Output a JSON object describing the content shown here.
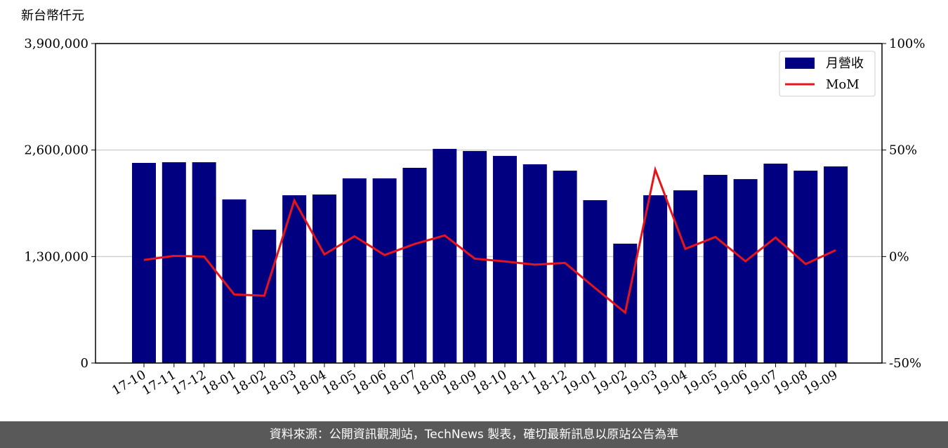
{
  "chart_data": {
    "type": "bar",
    "y_label": "新台幣仟元",
    "categories": [
      "17-10",
      "17-11",
      "17-12",
      "18-01",
      "18-02",
      "18-03",
      "18-04",
      "18-05",
      "18-06",
      "18-07",
      "18-08",
      "18-09",
      "18-10",
      "18-11",
      "18-12",
      "19-01",
      "19-02",
      "19-03",
      "19-04",
      "19-05",
      "19-06",
      "19-07",
      "19-08",
      "19-09"
    ],
    "series": [
      {
        "name": "月營收",
        "type": "bar",
        "color": "#000080",
        "values": [
          2443000,
          2451000,
          2451000,
          1997000,
          1628000,
          2048000,
          2057000,
          2254000,
          2254000,
          2383000,
          2614000,
          2588000,
          2528000,
          2426000,
          2348000,
          1988000,
          1457000,
          2048000,
          2108000,
          2297000,
          2245000,
          2434000,
          2348000,
          2400000
        ]
      },
      {
        "name": "MoM",
        "type": "line",
        "color": "#e8141c",
        "axis": "y2",
        "values": [
          -1.6,
          0.3,
          0,
          -17.8,
          -18.4,
          26.3,
          1,
          9.5,
          0.7,
          5.9,
          9.9,
          -1,
          -2.3,
          -3.8,
          -3,
          -14.8,
          -26.3,
          40.8,
          3.6,
          9.2,
          -2.2,
          8.9,
          -3.5,
          3
        ]
      }
    ],
    "ylim": [
      0,
      3900000
    ],
    "yticks": [
      0,
      {
        "value": 1300000,
        "label": "1,300,000"
      },
      {
        "value": 2600000,
        "label": "2,600,000"
      },
      {
        "value": 3900000,
        "label": "3,900,000"
      }
    ],
    "y2lim": [
      -50,
      100
    ],
    "y2ticks": [
      {
        "value": -50,
        "label": "-50%"
      },
      {
        "value": 0,
        "label": "0%"
      },
      {
        "value": 50,
        "label": "50%"
      },
      {
        "value": 100,
        "label": "100%"
      }
    ],
    "grid": true,
    "legend": "upper right"
  },
  "footer": "資料來源：公開資訊觀測站，TechNews 製表，確切最新訊息以原站公告為準"
}
